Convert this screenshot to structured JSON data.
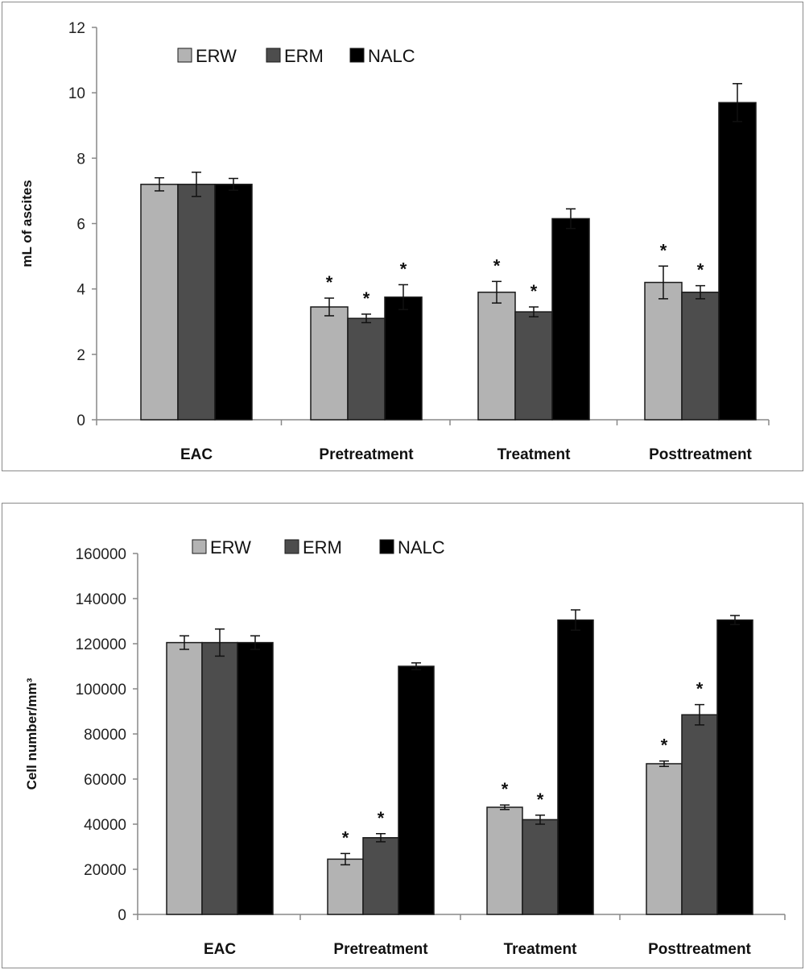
{
  "colors": {
    "ERW": "#b3b3b3",
    "ERM": "#4d4d4d",
    "NALC": "#000000"
  },
  "chart_data": [
    {
      "type": "bar",
      "categories": [
        "EAC",
        "Pretreatment",
        "Treatment",
        "Posttreatment"
      ],
      "ylabel": "mL of ascites",
      "ylim": [
        0,
        12
      ],
      "yticks": [
        "0",
        "2",
        "4",
        "6",
        "8",
        "10",
        "12"
      ],
      "legend": [
        "ERW",
        "ERM",
        "NALC"
      ],
      "legend_position": "top-left",
      "series": [
        {
          "name": "ERW",
          "values": [
            7.2,
            3.45,
            3.9,
            4.2
          ],
          "errors": [
            0.2,
            0.27,
            0.33,
            0.5
          ],
          "significant": [
            false,
            true,
            true,
            true
          ]
        },
        {
          "name": "ERM",
          "values": [
            7.2,
            3.1,
            3.3,
            3.9
          ],
          "errors": [
            0.37,
            0.13,
            0.15,
            0.2
          ],
          "significant": [
            false,
            true,
            true,
            true
          ]
        },
        {
          "name": "NALC",
          "values": [
            7.2,
            3.75,
            6.15,
            9.7
          ],
          "errors": [
            0.18,
            0.38,
            0.3,
            0.58
          ],
          "significant": [
            false,
            true,
            false,
            false
          ]
        }
      ]
    },
    {
      "type": "bar",
      "categories": [
        "EAC",
        "Pretreatment",
        "Treatment",
        "Posttreatment"
      ],
      "ylabel": "Cell number/mm³",
      "ylim": [
        0,
        160000
      ],
      "yticks": [
        "0",
        "20000",
        "40000",
        "60000",
        "80000",
        "100000",
        "120000",
        "140000",
        "160000"
      ],
      "legend": [
        "ERW",
        "ERM",
        "NALC"
      ],
      "legend_position": "top-left",
      "series": [
        {
          "name": "ERW",
          "values": [
            120500,
            24500,
            47500,
            66800
          ],
          "errors": [
            3000,
            2500,
            1000,
            1200
          ],
          "significant": [
            false,
            true,
            true,
            true
          ]
        },
        {
          "name": "ERM",
          "values": [
            120500,
            34000,
            42000,
            88500
          ],
          "errors": [
            6000,
            1800,
            2000,
            4500
          ],
          "significant": [
            false,
            true,
            true,
            true
          ]
        },
        {
          "name": "NALC",
          "values": [
            120500,
            110000,
            130500,
            130500
          ],
          "errors": [
            3000,
            1500,
            4500,
            2000
          ],
          "significant": [
            false,
            false,
            false,
            false
          ]
        }
      ]
    }
  ]
}
